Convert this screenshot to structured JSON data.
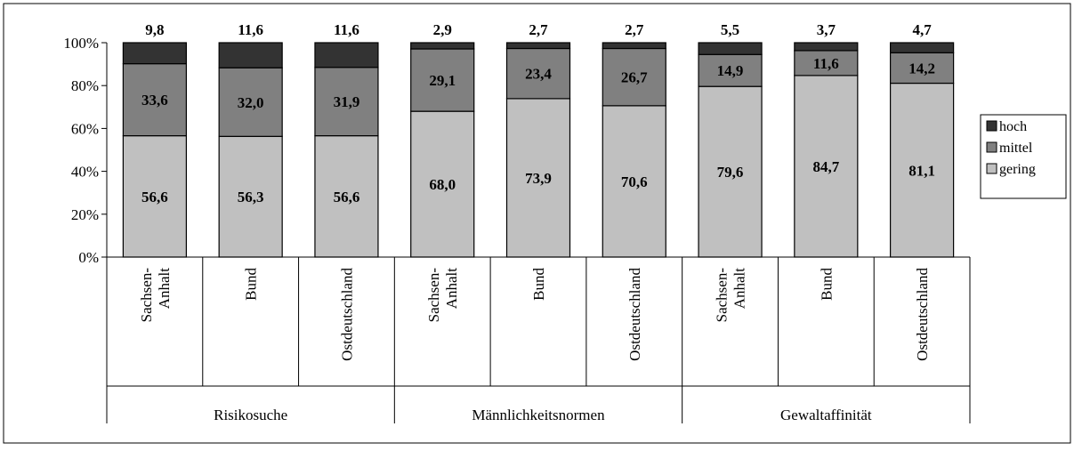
{
  "chart_data": {
    "type": "bar",
    "stacked": true,
    "percent_stacked": true,
    "title": "",
    "xlabel": "",
    "ylabel": "",
    "ylim": [
      0,
      100
    ],
    "y_ticks": [
      "0%",
      "20%",
      "40%",
      "60%",
      "80%",
      "100%"
    ],
    "y_tick_values": [
      0,
      20,
      40,
      60,
      80,
      100
    ],
    "grid": false,
    "legend_position": "right",
    "groups": [
      {
        "label": "Risikosuche",
        "categories": [
          "Sachsen-\nAnhalt",
          "Bund",
          "Ostdeutschland"
        ]
      },
      {
        "label": "Männlichkeitsnormen",
        "categories": [
          "Sachsen-\nAnhalt",
          "Bund",
          "Ostdeutschland"
        ]
      },
      {
        "label": "Gewaltaffinität",
        "categories": [
          "Sachsen-\nAnhalt",
          "Bund",
          "Ostdeutschland"
        ]
      }
    ],
    "series": [
      {
        "name": "gering",
        "color": "#c0c0c0",
        "values": [
          56.6,
          56.3,
          56.6,
          68.0,
          73.9,
          70.6,
          79.6,
          84.7,
          81.1
        ],
        "labels": [
          "56,6",
          "56,3",
          "56,6",
          "68,0",
          "73,9",
          "70,6",
          "79,6",
          "84,7",
          "81,1"
        ]
      },
      {
        "name": "mittel",
        "color": "#808080",
        "values": [
          33.6,
          32.0,
          31.9,
          29.1,
          23.4,
          26.7,
          14.9,
          11.6,
          14.2
        ],
        "labels": [
          "33,6",
          "32,0",
          "31,9",
          "29,1",
          "23,4",
          "26,7",
          "14,9",
          "11,6",
          "14,2"
        ]
      },
      {
        "name": "hoch",
        "color": "#333333",
        "values": [
          9.8,
          11.6,
          11.6,
          2.9,
          2.7,
          2.7,
          5.5,
          3.7,
          4.7
        ],
        "labels": [
          "9,8",
          "11,6",
          "11,6",
          "2,9",
          "2,7",
          "2,7",
          "5,5",
          "3,7",
          "4,7"
        ]
      }
    ],
    "legend_order": [
      "hoch",
      "mittel",
      "gering"
    ]
  }
}
